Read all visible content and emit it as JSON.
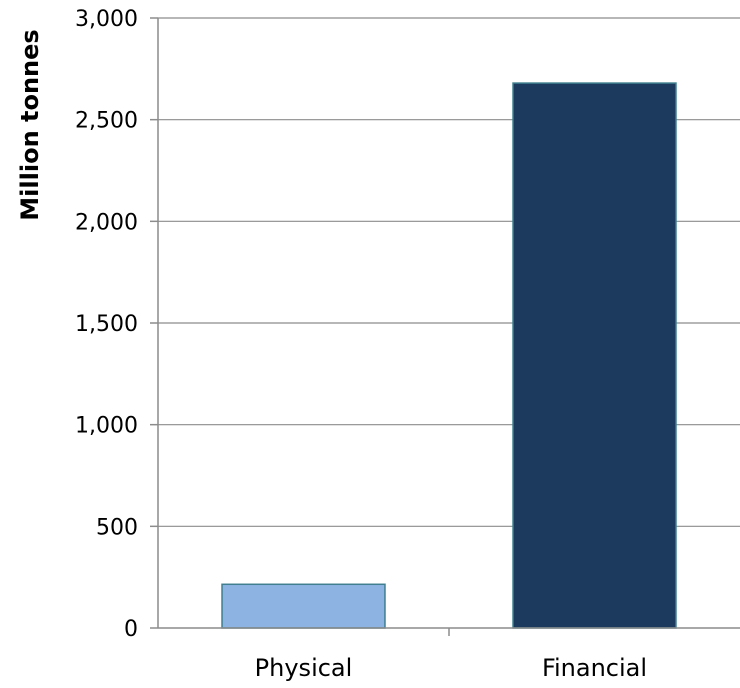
{
  "chart_data": {
    "type": "bar",
    "categories": [
      "Physical",
      "Financial"
    ],
    "values": [
      215,
      2680
    ],
    "ylabel": "Million tonnes",
    "xlabel": "",
    "ylim": [
      0,
      3000
    ],
    "yticks": [
      0,
      500,
      1000,
      1500,
      2000,
      2500,
      3000
    ],
    "ytick_labels": [
      "0",
      "500",
      "1,000",
      "1,500",
      "2,000",
      "2,500",
      "3,000"
    ],
    "grid": true,
    "bar_colors": [
      "#8db3e2",
      "#1b3a5e"
    ],
    "bar_edge_color": "#3f7f8f"
  }
}
